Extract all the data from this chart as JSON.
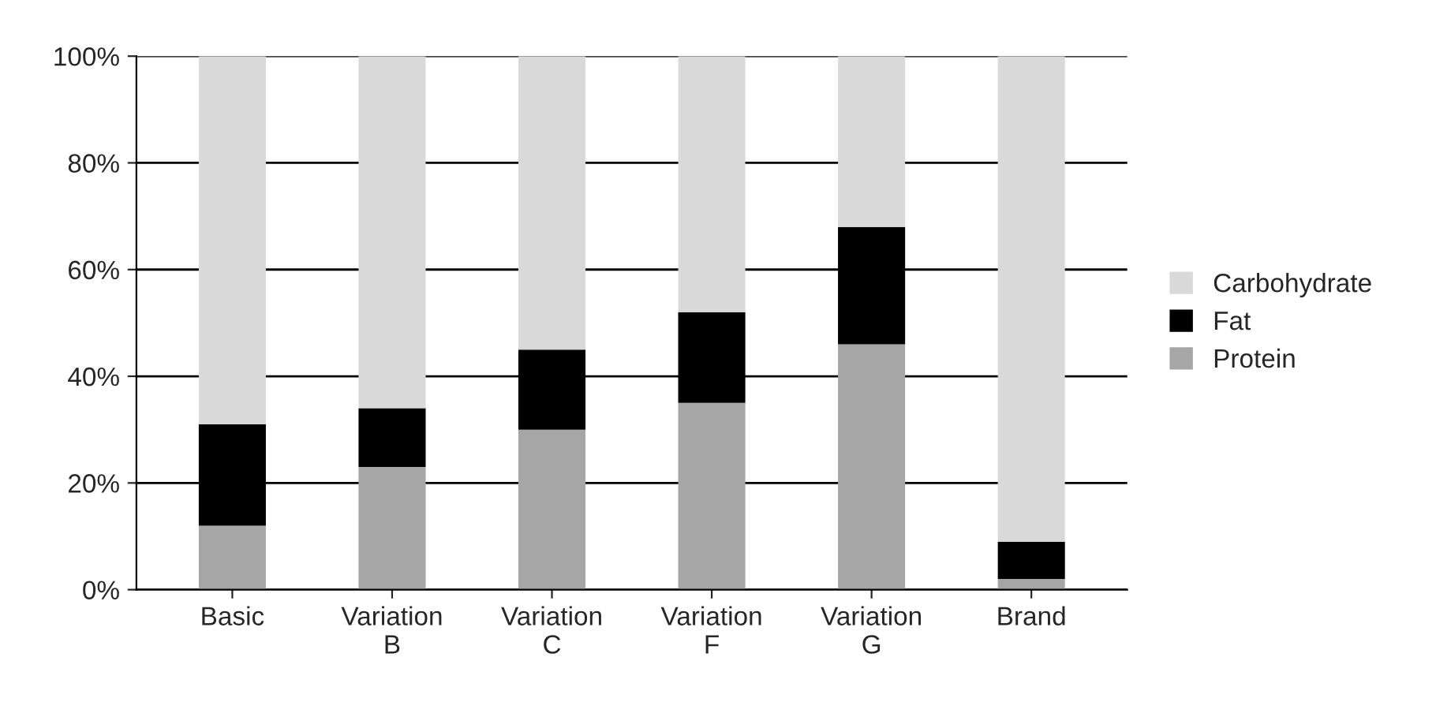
{
  "chart_data": {
    "type": "bar",
    "stacked": true,
    "categories": [
      "Basic",
      "Variation\nB",
      "Variation\nC",
      "Variation\nF",
      "Variation\nG",
      "Brand"
    ],
    "series": [
      {
        "name": "Protein",
        "color": "#a6a6a6",
        "values": [
          12,
          23,
          30,
          35,
          46,
          2
        ]
      },
      {
        "name": "Fat",
        "color": "#000000",
        "values": [
          19,
          11,
          15,
          17,
          22,
          7
        ]
      },
      {
        "name": "Carbohydrate",
        "color": "#d9d9d9",
        "values": [
          69,
          66,
          55,
          48,
          32,
          91
        ]
      }
    ],
    "ylim": [
      0,
      100
    ],
    "yticks": [
      {
        "value": 0,
        "label": "0%"
      },
      {
        "value": 20,
        "label": "20%"
      },
      {
        "value": 40,
        "label": "40%"
      },
      {
        "value": 60,
        "label": "60%"
      },
      {
        "value": 80,
        "label": "80%"
      },
      {
        "value": 100,
        "label": "100%"
      }
    ],
    "grid": "y",
    "legend": "right"
  }
}
